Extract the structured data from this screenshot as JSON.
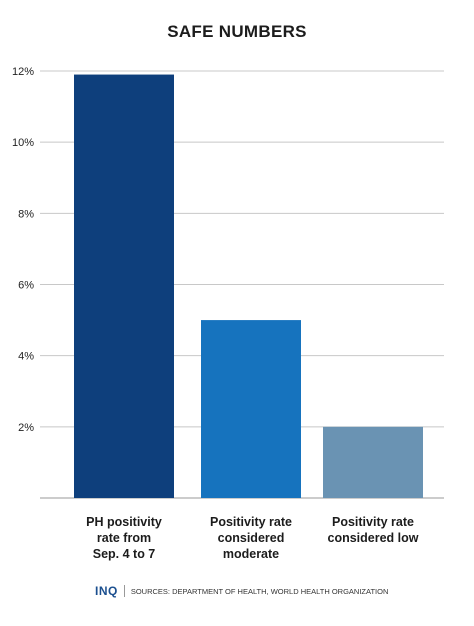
{
  "chart_data": {
    "type": "bar",
    "title": "SAFE NUMBERS",
    "categories": [
      [
        "PH positivity",
        "rate from",
        "Sep. 4 to 7"
      ],
      [
        "Positivity rate",
        "considered",
        "moderate"
      ],
      [
        "Positivity rate",
        "considered low"
      ]
    ],
    "values": [
      11.9,
      5,
      2
    ],
    "colors": [
      "#0e3f7c",
      "#1673be",
      "#6a93b3"
    ],
    "ylim": [
      0,
      12
    ],
    "yticks": [
      2,
      4,
      6,
      8,
      10,
      12
    ],
    "ytick_labels": [
      "2%",
      "4%",
      "6%",
      "8%",
      "10%",
      "12%"
    ],
    "grid": true,
    "xlabel": "",
    "ylabel": ""
  },
  "footer": {
    "logo": "INQ",
    "sources": "SOURCES: DEPARTMENT OF HEALTH, WORLD HEALTH ORGANIZATION"
  }
}
